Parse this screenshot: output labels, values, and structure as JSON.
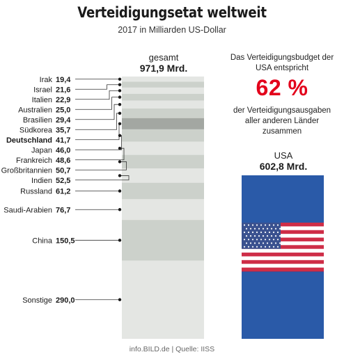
{
  "header": {
    "title": "Verteidigungsetat weltweit",
    "subtitle": "2017 in Milliarden US-Dollar"
  },
  "total": {
    "label": "gesamt",
    "value": "971,9 Mrd."
  },
  "usa_callout": {
    "note_top": "Das Verteidigungsbudget der USA entspricht",
    "percent": "62 %",
    "note_bottom": "der Verteidigungsausgaben aller anderen Länder zusammen",
    "label": "USA",
    "value": "602,8 Mrd."
  },
  "source": "info.BILD.de | Quelle: IISS",
  "colors": {
    "accent": "#e3001b",
    "usa_blue": "#2a5aa8",
    "bar_light": "#e4e6e3",
    "bar_mid": "#ccd1cb",
    "highlight": "#a3a7a2"
  },
  "chart_data": {
    "type": "bar",
    "subtype": "stacked-column",
    "title": "Verteidigungsetat weltweit",
    "subtitle": "2017 in Milliarden US-Dollar",
    "unit": "Milliarden US-Dollar",
    "stack_total": 971.9,
    "highlight": "Deutschland",
    "categories": [
      "Irak",
      "Israel",
      "Italien",
      "Australien",
      "Brasilien",
      "Südkorea",
      "Deutschland",
      "Japan",
      "Frankreich",
      "Großbritannien",
      "Indien",
      "Russland",
      "Saudi-Arabien",
      "China",
      "Sonstige"
    ],
    "values": [
      19.4,
      21.6,
      22.9,
      25.0,
      29.4,
      35.7,
      41.7,
      46.0,
      48.6,
      50.7,
      52.5,
      61.2,
      76.7,
      150.5,
      290.0
    ],
    "value_labels": [
      "19,4",
      "21,6",
      "22,9",
      "25,0",
      "29,4",
      "35,7",
      "41,7",
      "46,0",
      "48,6",
      "50,7",
      "52,5",
      "61,2",
      "76,7",
      "150,5",
      "290,0"
    ],
    "comparison": {
      "category": "USA",
      "value": 602.8,
      "value_label": "602,8 Mrd.",
      "share_of_others_percent": 62
    }
  }
}
